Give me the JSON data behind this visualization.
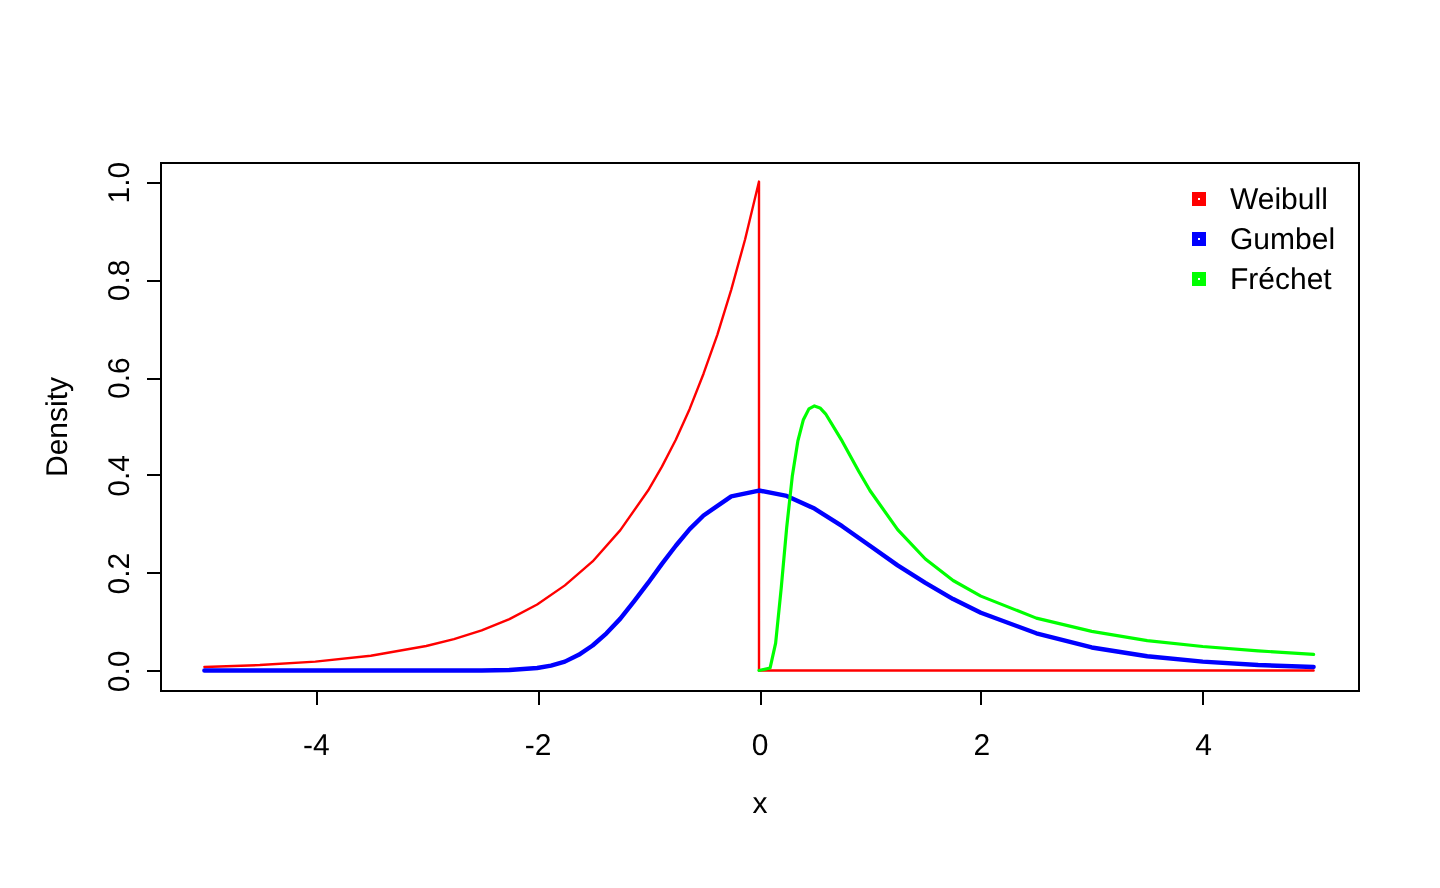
{
  "chart_data": {
    "type": "line",
    "xlabel": "x",
    "ylabel": "Density",
    "xlim": [
      -5.4,
      5.4
    ],
    "ylim": [
      -0.04,
      1.04
    ],
    "xticks": [
      -4,
      -2,
      0,
      2,
      4
    ],
    "yticks": [
      {
        "value": 0,
        "label": "0.0"
      },
      0.2,
      0.4,
      0.6,
      0.8,
      {
        "value": 1,
        "label": "1.0"
      }
    ],
    "grid": false,
    "legend": "top right",
    "series": [
      {
        "name": "Weibull",
        "color": "#ff0000",
        "x": [
          -5,
          -4.5,
          -4,
          -3.5,
          -3,
          -2.75,
          -2.5,
          -2.25,
          -2,
          -1.75,
          -1.5,
          -1.25,
          -1,
          -0.875,
          -0.75,
          -0.625,
          -0.5,
          -0.375,
          -0.25,
          -0.125,
          0,
          0,
          5
        ],
        "values": [
          0.007,
          0.011,
          0.018,
          0.03,
          0.05,
          0.064,
          0.082,
          0.105,
          0.135,
          0.174,
          0.223,
          0.287,
          0.368,
          0.417,
          0.472,
          0.535,
          0.607,
          0.687,
          0.779,
          0.882,
          1.0,
          0,
          0
        ]
      },
      {
        "name": "Gumbel",
        "color": "#0000ff",
        "x": [
          -5,
          -3,
          -2.5,
          -2.25,
          -2,
          -1.875,
          -1.75,
          -1.625,
          -1.5,
          -1.375,
          -1.25,
          -1.125,
          -1,
          -0.875,
          -0.75,
          -0.625,
          -0.5,
          -0.25,
          0,
          0.25,
          0.5,
          0.75,
          1,
          1.25,
          1.5,
          1.75,
          2,
          2.5,
          3,
          3.5,
          4,
          4.5,
          5
        ],
        "values": [
          0,
          0,
          0,
          0.001,
          0.005,
          0.01,
          0.018,
          0.032,
          0.051,
          0.076,
          0.106,
          0.142,
          0.179,
          0.218,
          0.255,
          0.289,
          0.317,
          0.356,
          0.368,
          0.357,
          0.331,
          0.295,
          0.255,
          0.215,
          0.179,
          0.146,
          0.118,
          0.076,
          0.047,
          0.029,
          0.018,
          0.011,
          0.007
        ]
      },
      {
        "name": "Fréchet",
        "color": "#00ff00",
        "x": [
          0,
          0.1,
          0.15,
          0.2,
          0.25,
          0.3,
          0.35,
          0.4,
          0.45,
          0.5,
          0.55,
          0.6,
          0.75,
          0.9,
          1,
          1.25,
          1.5,
          1.75,
          2,
          2.5,
          3,
          3.5,
          4,
          4.5,
          5
        ],
        "values": [
          0,
          0.005,
          0.056,
          0.168,
          0.293,
          0.397,
          0.469,
          0.513,
          0.535,
          0.541,
          0.537,
          0.525,
          0.469,
          0.407,
          0.368,
          0.288,
          0.228,
          0.184,
          0.152,
          0.107,
          0.08,
          0.061,
          0.049,
          0.04,
          0.033
        ]
      }
    ]
  }
}
